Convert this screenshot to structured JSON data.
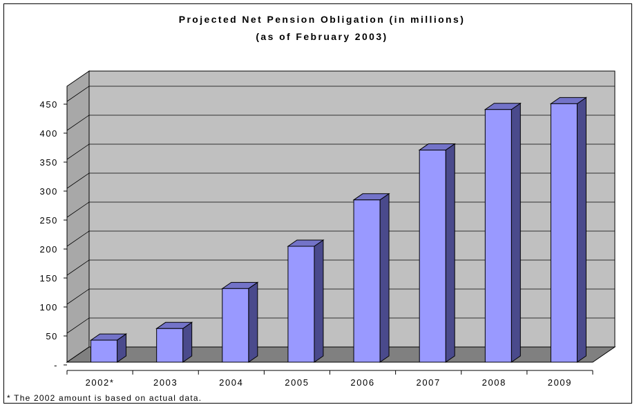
{
  "chart_data": {
    "type": "bar",
    "title": "Projected Net Pension Obligation (in millions)",
    "subtitle": "(as of February 2003)",
    "xlabel": "",
    "ylabel": "",
    "categories": [
      "2002*",
      "2003",
      "2004",
      "2005",
      "2006",
      "2007",
      "2008",
      "2009"
    ],
    "values": [
      38,
      58,
      127,
      200,
      280,
      366,
      436,
      446
    ],
    "ylim": [
      0,
      450
    ],
    "yticks": [
      0,
      50,
      100,
      150,
      200,
      250,
      300,
      350,
      400,
      450
    ],
    "ytick_labels": [
      "-",
      "50",
      "100",
      "150",
      "200",
      "250",
      "300",
      "350",
      "400",
      "450"
    ],
    "grid": true,
    "style": "3d-column",
    "colors": {
      "bar_front": "#9999ff",
      "bar_side": "#4a4a8c",
      "bar_top": "#7373c8",
      "wall": "#c0c0c0",
      "floor": "#808080"
    },
    "footnote": "* The 2002 amount is based on actual data."
  }
}
